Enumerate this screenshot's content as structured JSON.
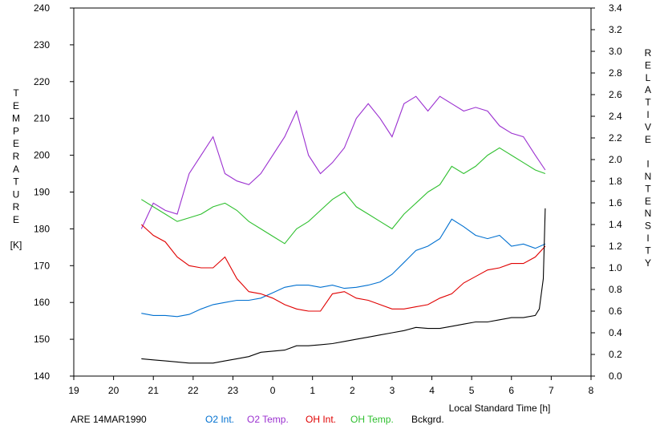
{
  "chart_data": {
    "type": "line",
    "xlabel": "Local Standard Time [h]",
    "ylabel_left": [
      "T",
      "E",
      "M",
      "P",
      "E",
      "R",
      "A",
      "T",
      "U",
      "R",
      "E",
      "",
      "[K]"
    ],
    "ylabel_right": [
      "R",
      "E",
      "L",
      "A",
      "T",
      "I",
      "V",
      "E",
      "",
      "I",
      "N",
      "T",
      "E",
      "N",
      "S",
      "I",
      "T",
      "Y"
    ],
    "footer_label": "ARE 14MAR1990",
    "x_ticks": [
      "19",
      "20",
      "21",
      "22",
      "23",
      "0",
      "1",
      "2",
      "3",
      "4",
      "5",
      "6",
      "7",
      "8"
    ],
    "y_left_ticks": [
      "140",
      "150",
      "160",
      "170",
      "180",
      "190",
      "200",
      "210",
      "220",
      "230",
      "240"
    ],
    "y_right_ticks": [
      "0.0",
      "0.2",
      "0.4",
      "0.6",
      "0.8",
      "1.0",
      "1.2",
      "1.4",
      "1.6",
      "1.8",
      "2.0",
      "2.2",
      "2.4",
      "2.6",
      "2.8",
      "3.0",
      "3.2",
      "3.4"
    ],
    "xlim": [
      19,
      32
    ],
    "ylim_left": [
      140,
      240
    ],
    "ylim_right": [
      0,
      3.4
    ],
    "grid": false,
    "legend_placement": "bottom",
    "series": [
      {
        "name": "O2 Int.",
        "color": "#0070d0",
        "axis": "right",
        "x": [
          20.7,
          21.0,
          21.3,
          21.6,
          21.9,
          22.2,
          22.5,
          22.8,
          23.1,
          23.4,
          23.7,
          24.0,
          24.3,
          24.6,
          24.9,
          25.2,
          25.5,
          25.8,
          26.1,
          26.4,
          26.7,
          27.0,
          27.3,
          27.6,
          27.9,
          28.2,
          28.5,
          28.8,
          29.1,
          29.4,
          29.7,
          30.0,
          30.3,
          30.6,
          30.85
        ],
        "y": [
          0.58,
          0.56,
          0.56,
          0.55,
          0.57,
          0.62,
          0.66,
          0.68,
          0.7,
          0.7,
          0.72,
          0.77,
          0.82,
          0.84,
          0.84,
          0.82,
          0.84,
          0.81,
          0.82,
          0.84,
          0.87,
          0.94,
          1.05,
          1.16,
          1.2,
          1.27,
          1.45,
          1.38,
          1.3,
          1.27,
          1.3,
          1.2,
          1.22,
          1.18,
          1.22
        ]
      },
      {
        "name": "O2 Temp.",
        "color": "#9b30d0",
        "axis": "left",
        "x": [
          20.7,
          21.0,
          21.3,
          21.6,
          21.9,
          22.2,
          22.5,
          22.8,
          23.1,
          23.4,
          23.7,
          24.0,
          24.3,
          24.6,
          24.9,
          25.2,
          25.5,
          25.8,
          26.1,
          26.4,
          26.7,
          27.0,
          27.3,
          27.6,
          27.9,
          28.2,
          28.5,
          28.8,
          29.1,
          29.4,
          29.7,
          30.0,
          30.3,
          30.6,
          30.85
        ],
        "y": [
          180,
          187,
          185,
          184,
          195,
          200,
          205,
          195,
          193,
          192,
          195,
          200,
          205,
          212,
          200,
          195,
          198,
          202,
          210,
          214,
          210,
          205,
          214,
          216,
          212,
          216,
          214,
          212,
          213,
          212,
          208,
          206,
          205,
          200,
          196
        ]
      },
      {
        "name": "OH Int.",
        "color": "#e00000",
        "axis": "right",
        "x": [
          20.7,
          21.0,
          21.3,
          21.6,
          21.9,
          22.2,
          22.5,
          22.8,
          23.1,
          23.4,
          23.7,
          24.0,
          24.3,
          24.6,
          24.9,
          25.2,
          25.5,
          25.8,
          26.1,
          26.4,
          26.7,
          27.0,
          27.3,
          27.6,
          27.9,
          28.2,
          28.5,
          28.8,
          29.1,
          29.4,
          29.7,
          30.0,
          30.3,
          30.6,
          30.85
        ],
        "y": [
          1.4,
          1.3,
          1.24,
          1.1,
          1.02,
          1.0,
          1.0,
          1.1,
          0.9,
          0.78,
          0.76,
          0.72,
          0.66,
          0.62,
          0.6,
          0.6,
          0.76,
          0.78,
          0.72,
          0.7,
          0.66,
          0.62,
          0.62,
          0.64,
          0.66,
          0.72,
          0.76,
          0.86,
          0.92,
          0.98,
          1.0,
          1.04,
          1.04,
          1.1,
          1.2
        ]
      },
      {
        "name": "OH Temp.",
        "color": "#30c030",
        "axis": "left",
        "x": [
          20.7,
          21.0,
          21.3,
          21.6,
          21.9,
          22.2,
          22.5,
          22.8,
          23.1,
          23.4,
          23.7,
          24.0,
          24.3,
          24.6,
          24.9,
          25.2,
          25.5,
          25.8,
          26.1,
          26.4,
          26.7,
          27.0,
          27.3,
          27.6,
          27.9,
          28.2,
          28.5,
          28.8,
          29.1,
          29.4,
          29.7,
          30.0,
          30.3,
          30.6,
          30.85
        ],
        "y": [
          188,
          186,
          184,
          182,
          183,
          184,
          186,
          187,
          185,
          182,
          180,
          178,
          176,
          180,
          182,
          185,
          188,
          190,
          186,
          184,
          182,
          180,
          184,
          187,
          190,
          192,
          197,
          195,
          197,
          200,
          202,
          200,
          198,
          196,
          195
        ]
      },
      {
        "name": "Bckgrd.",
        "color": "#000000",
        "axis": "right",
        "x": [
          20.7,
          21.0,
          21.3,
          21.6,
          21.9,
          22.2,
          22.5,
          22.8,
          23.1,
          23.4,
          23.7,
          24.0,
          24.3,
          24.6,
          24.9,
          25.2,
          25.5,
          25.8,
          26.1,
          26.4,
          26.7,
          27.0,
          27.3,
          27.6,
          27.9,
          28.2,
          28.5,
          28.8,
          29.1,
          29.4,
          29.7,
          30.0,
          30.3,
          30.6,
          30.7,
          30.8,
          30.85
        ],
        "y": [
          0.16,
          0.15,
          0.14,
          0.13,
          0.12,
          0.12,
          0.12,
          0.14,
          0.16,
          0.18,
          0.22,
          0.23,
          0.24,
          0.28,
          0.28,
          0.29,
          0.3,
          0.32,
          0.34,
          0.36,
          0.38,
          0.4,
          0.42,
          0.45,
          0.44,
          0.44,
          0.46,
          0.48,
          0.5,
          0.5,
          0.52,
          0.54,
          0.54,
          0.56,
          0.62,
          0.9,
          1.55
        ]
      }
    ]
  }
}
